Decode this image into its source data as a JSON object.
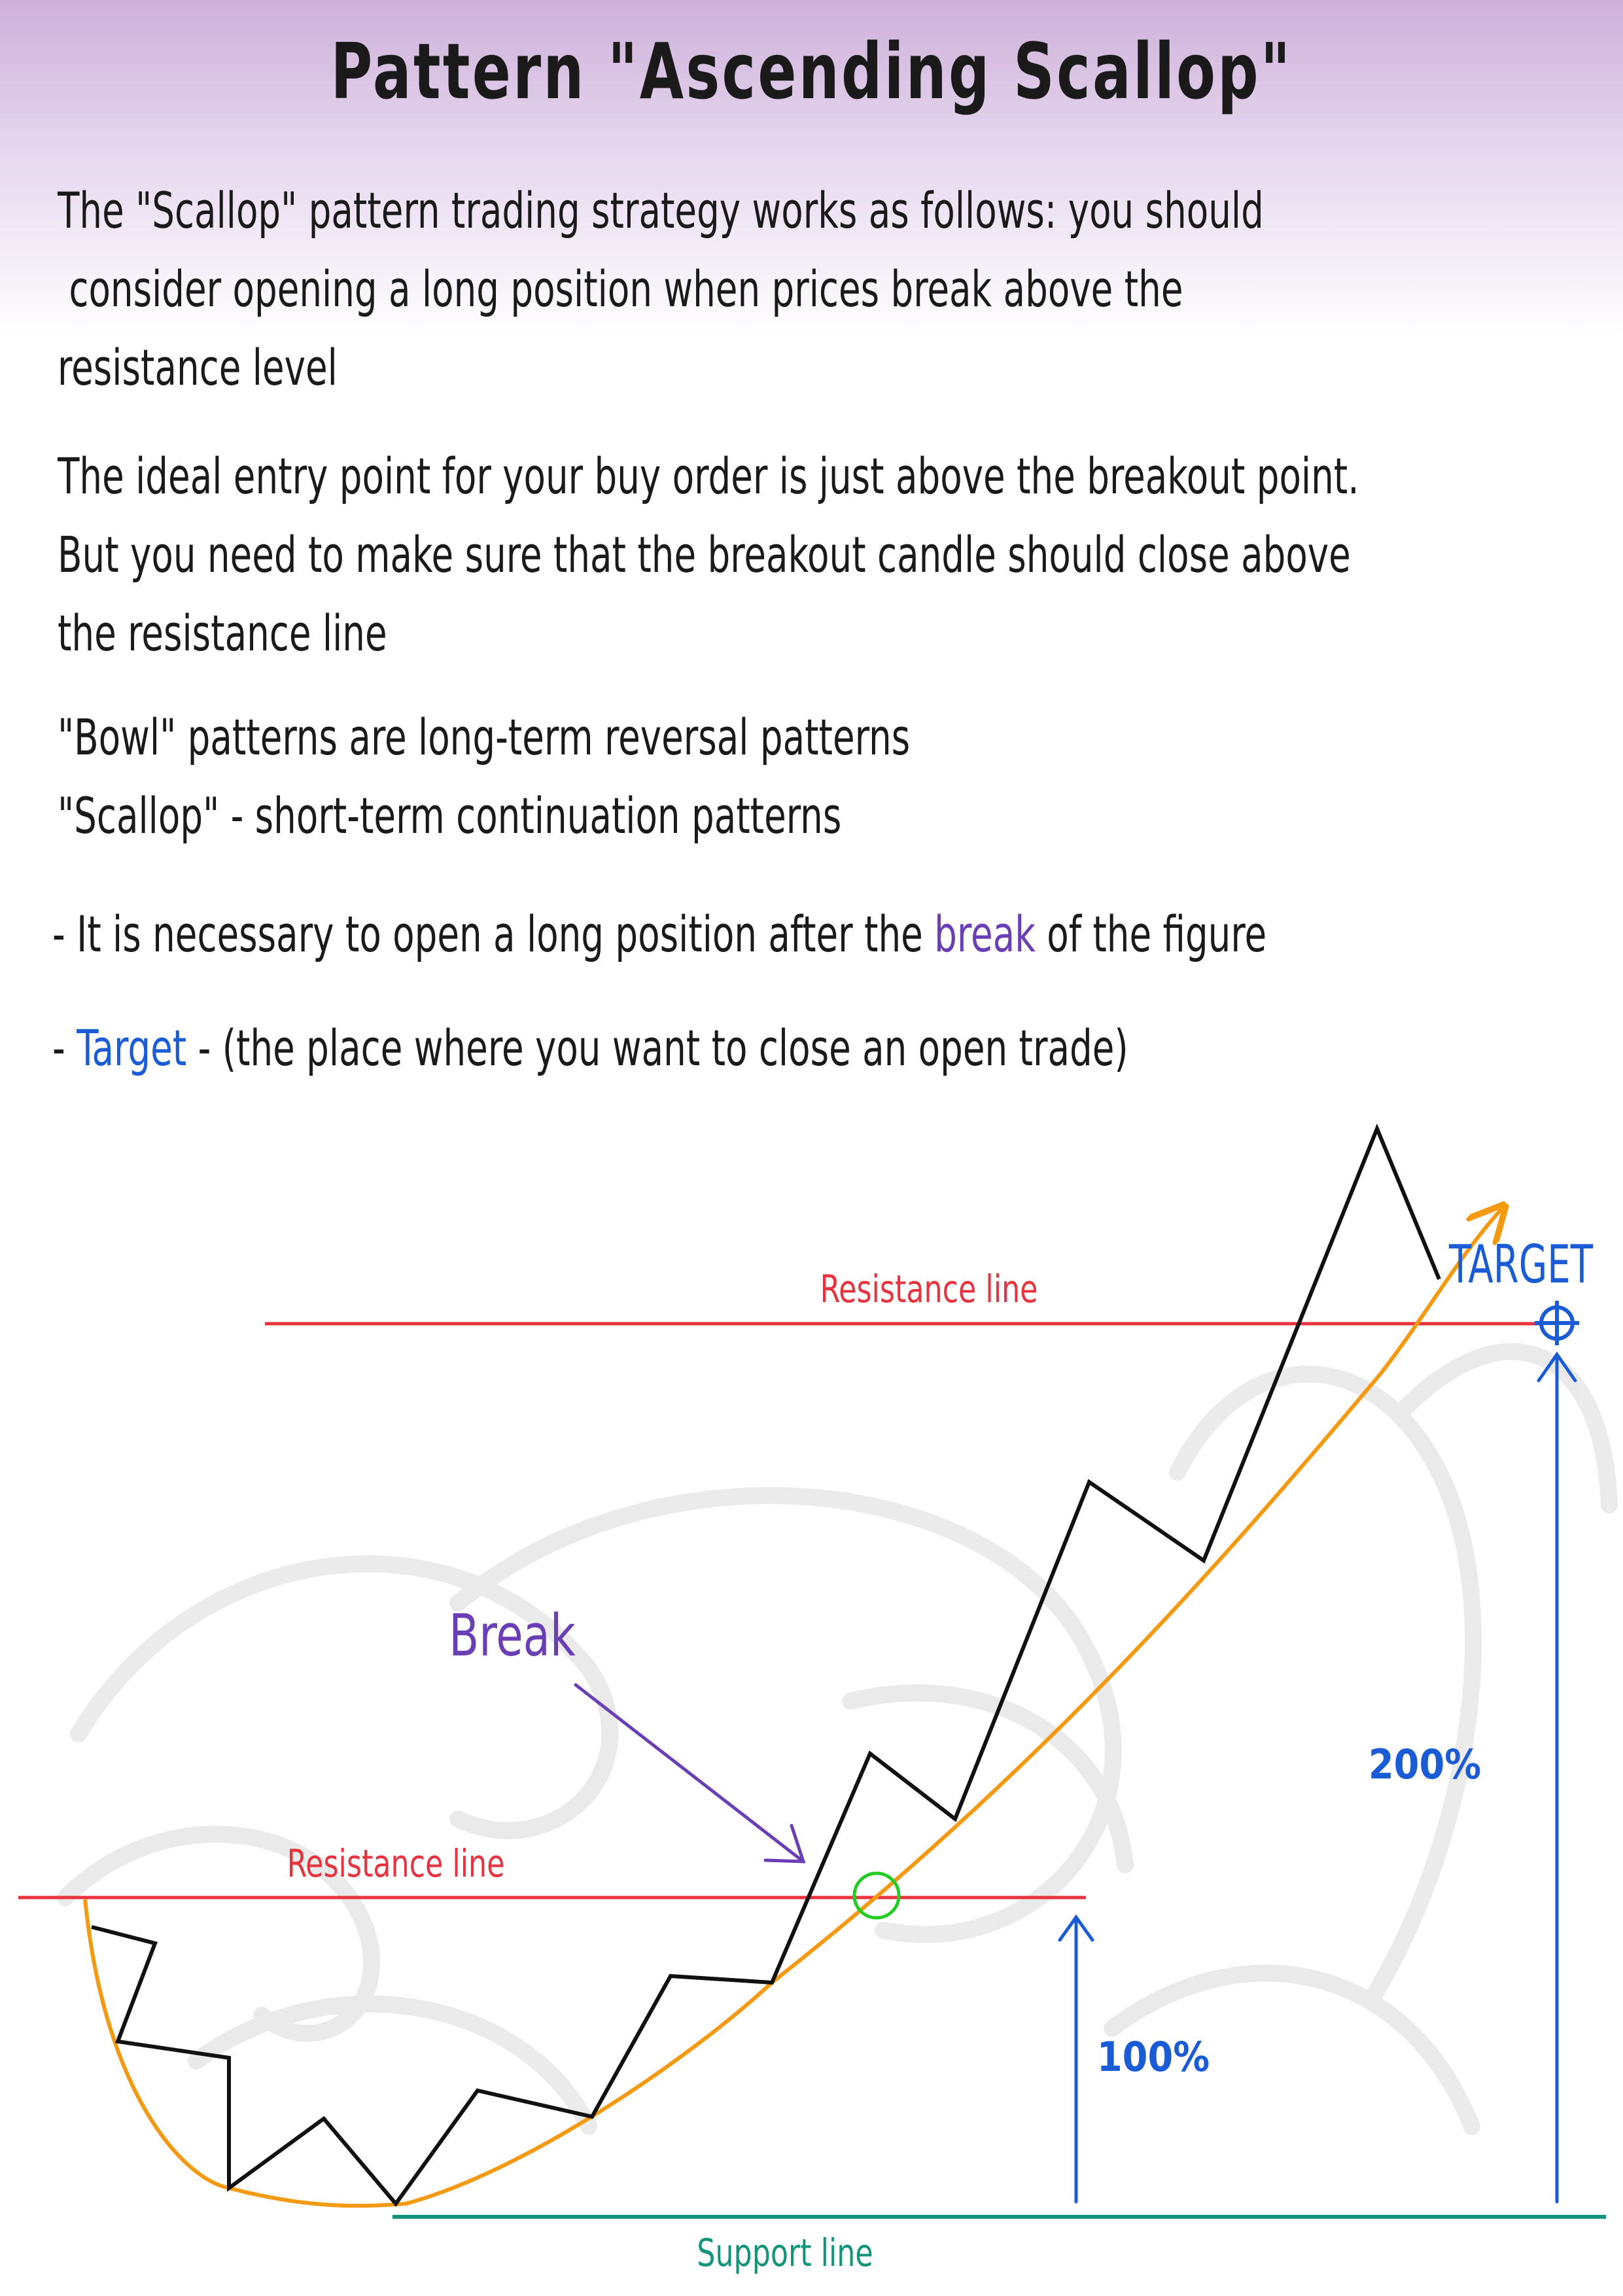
{
  "title": "Pattern \"Ascending Scallop\"",
  "intro": {
    "lines": [
      "The \"Scallop\" pattern trading strategy works as follows: you should",
      " consider opening a long position when prices break above the",
      "resistance level"
    ]
  },
  "entry": {
    "lines": [
      "The ideal entry point for your buy order is just above the breakout point.",
      "But you need to make sure that the breakout candle should close above",
      "the resistance line"
    ]
  },
  "types": {
    "lines": [
      "\"Bowl\" patterns are long-term reversal patterns",
      "\"Scallop\" - short-term continuation patterns"
    ]
  },
  "bullets": {
    "break_before": "- It is necessary to open a long position after the ",
    "break_word": "break",
    "break_after": " of the figure",
    "target_before": "- ",
    "target_word": "Target",
    "target_after": " - (the place where you want to close an open trade)"
  },
  "diagram": {
    "resistance_label_upper": "Resistance line",
    "resistance_label_lower": "Resistance line",
    "support_label": "Support line",
    "break_label": "Break",
    "target_label": "TARGET",
    "pct_100": "100%",
    "pct_200": "200%",
    "colors": {
      "resistance": "#e8323e",
      "support": "#12947a",
      "curve": "#f39a12",
      "price": "#111111",
      "break": "#6a3fb5",
      "target": "#1a5bd6",
      "breakout_circle": "#22cc22"
    }
  }
}
